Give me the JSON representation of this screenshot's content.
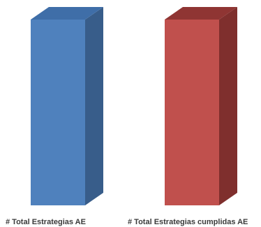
{
  "chart_data": {
    "type": "bar",
    "style": "3d-column",
    "categories": [
      "# Total Estrategias AE",
      "# Total Estrategias cumplidas  AE"
    ],
    "series": [
      {
        "values": [
          100,
          100
        ]
      }
    ],
    "colors": {
      "bars": [
        {
          "front": "#4f81bd",
          "side": "#385d8a",
          "top": "#3f6ea8"
        },
        {
          "front": "#c0504d",
          "side": "#7f2f2d",
          "top": "#8f3533"
        }
      ]
    },
    "ylim": [
      0,
      100
    ],
    "grid": false,
    "legend": "none",
    "title": "",
    "xlabel": "",
    "ylabel": ""
  }
}
